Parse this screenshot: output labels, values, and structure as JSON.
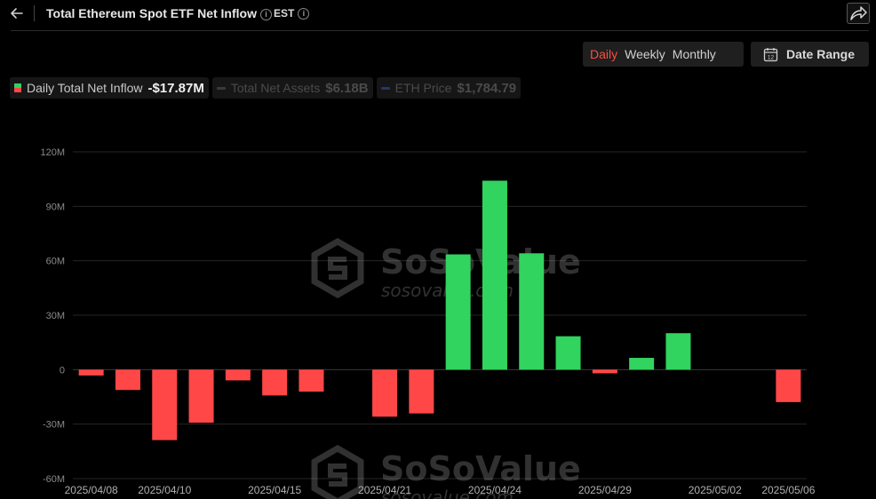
{
  "header": {
    "title": "Total Ethereum Spot ETF Net Inflow",
    "timezone": "EST"
  },
  "controls": {
    "periods": [
      {
        "label": "Daily",
        "active": true
      },
      {
        "label": "Weekly",
        "active": false
      },
      {
        "label": "Monthly",
        "active": false
      }
    ],
    "date_range_label": "Date Range",
    "date_range_icon_text": "12"
  },
  "legend": [
    {
      "name": "Daily Total Net Inflow",
      "value": "-$17.87M",
      "active": true
    },
    {
      "name": "Total Net Assets",
      "value": "$6.18B",
      "active": false,
      "color": "#3a3a3a"
    },
    {
      "name": "ETH Price",
      "value": "$1,784.79",
      "active": false,
      "color": "#1f3a66"
    }
  ],
  "watermark": {
    "brand": "SoSoValue",
    "site": "sosovalue.com"
  },
  "colors": {
    "positive": "#31d45e",
    "negative": "#ff4747",
    "accent": "#ff4d3d"
  },
  "chart_data": {
    "type": "bar",
    "categories": [
      "2025/04/08",
      "2025/04/09",
      "2025/04/10",
      "2025/04/11",
      "2025/04/14",
      "2025/04/15",
      "2025/04/16",
      "2025/04/17",
      "2025/04/21",
      "2025/04/22",
      "2025/04/23",
      "2025/04/24",
      "2025/04/25",
      "2025/04/28",
      "2025/04/29",
      "2025/04/30",
      "2025/05/01",
      "2025/05/02",
      "2025/05/05",
      "2025/05/06"
    ],
    "series": [
      {
        "values": [
          -3.2,
          -11.2,
          -38.8,
          -29.2,
          -5.9,
          -14.2,
          -12.1,
          0,
          -25.9,
          -24.1,
          63.5,
          104.1,
          64.1,
          18.4,
          -2.0,
          6.5,
          20.1,
          0,
          0,
          -17.87
        ]
      }
    ],
    "x_tick_labels": [
      "2025/04/08",
      "2025/04/10",
      "2025/04/15",
      "2025/04/21",
      "2025/04/24",
      "2025/04/29",
      "2025/05/02",
      "2025/05/06"
    ],
    "y_tick_labels": [
      "120M",
      "90M",
      "60M",
      "30M",
      "0",
      "-30M",
      "-60M"
    ],
    "y_ticks": [
      120,
      90,
      60,
      30,
      0,
      -30,
      -60
    ],
    "ylim": [
      -60,
      120
    ],
    "grid": true,
    "legend_position": "top-left"
  }
}
